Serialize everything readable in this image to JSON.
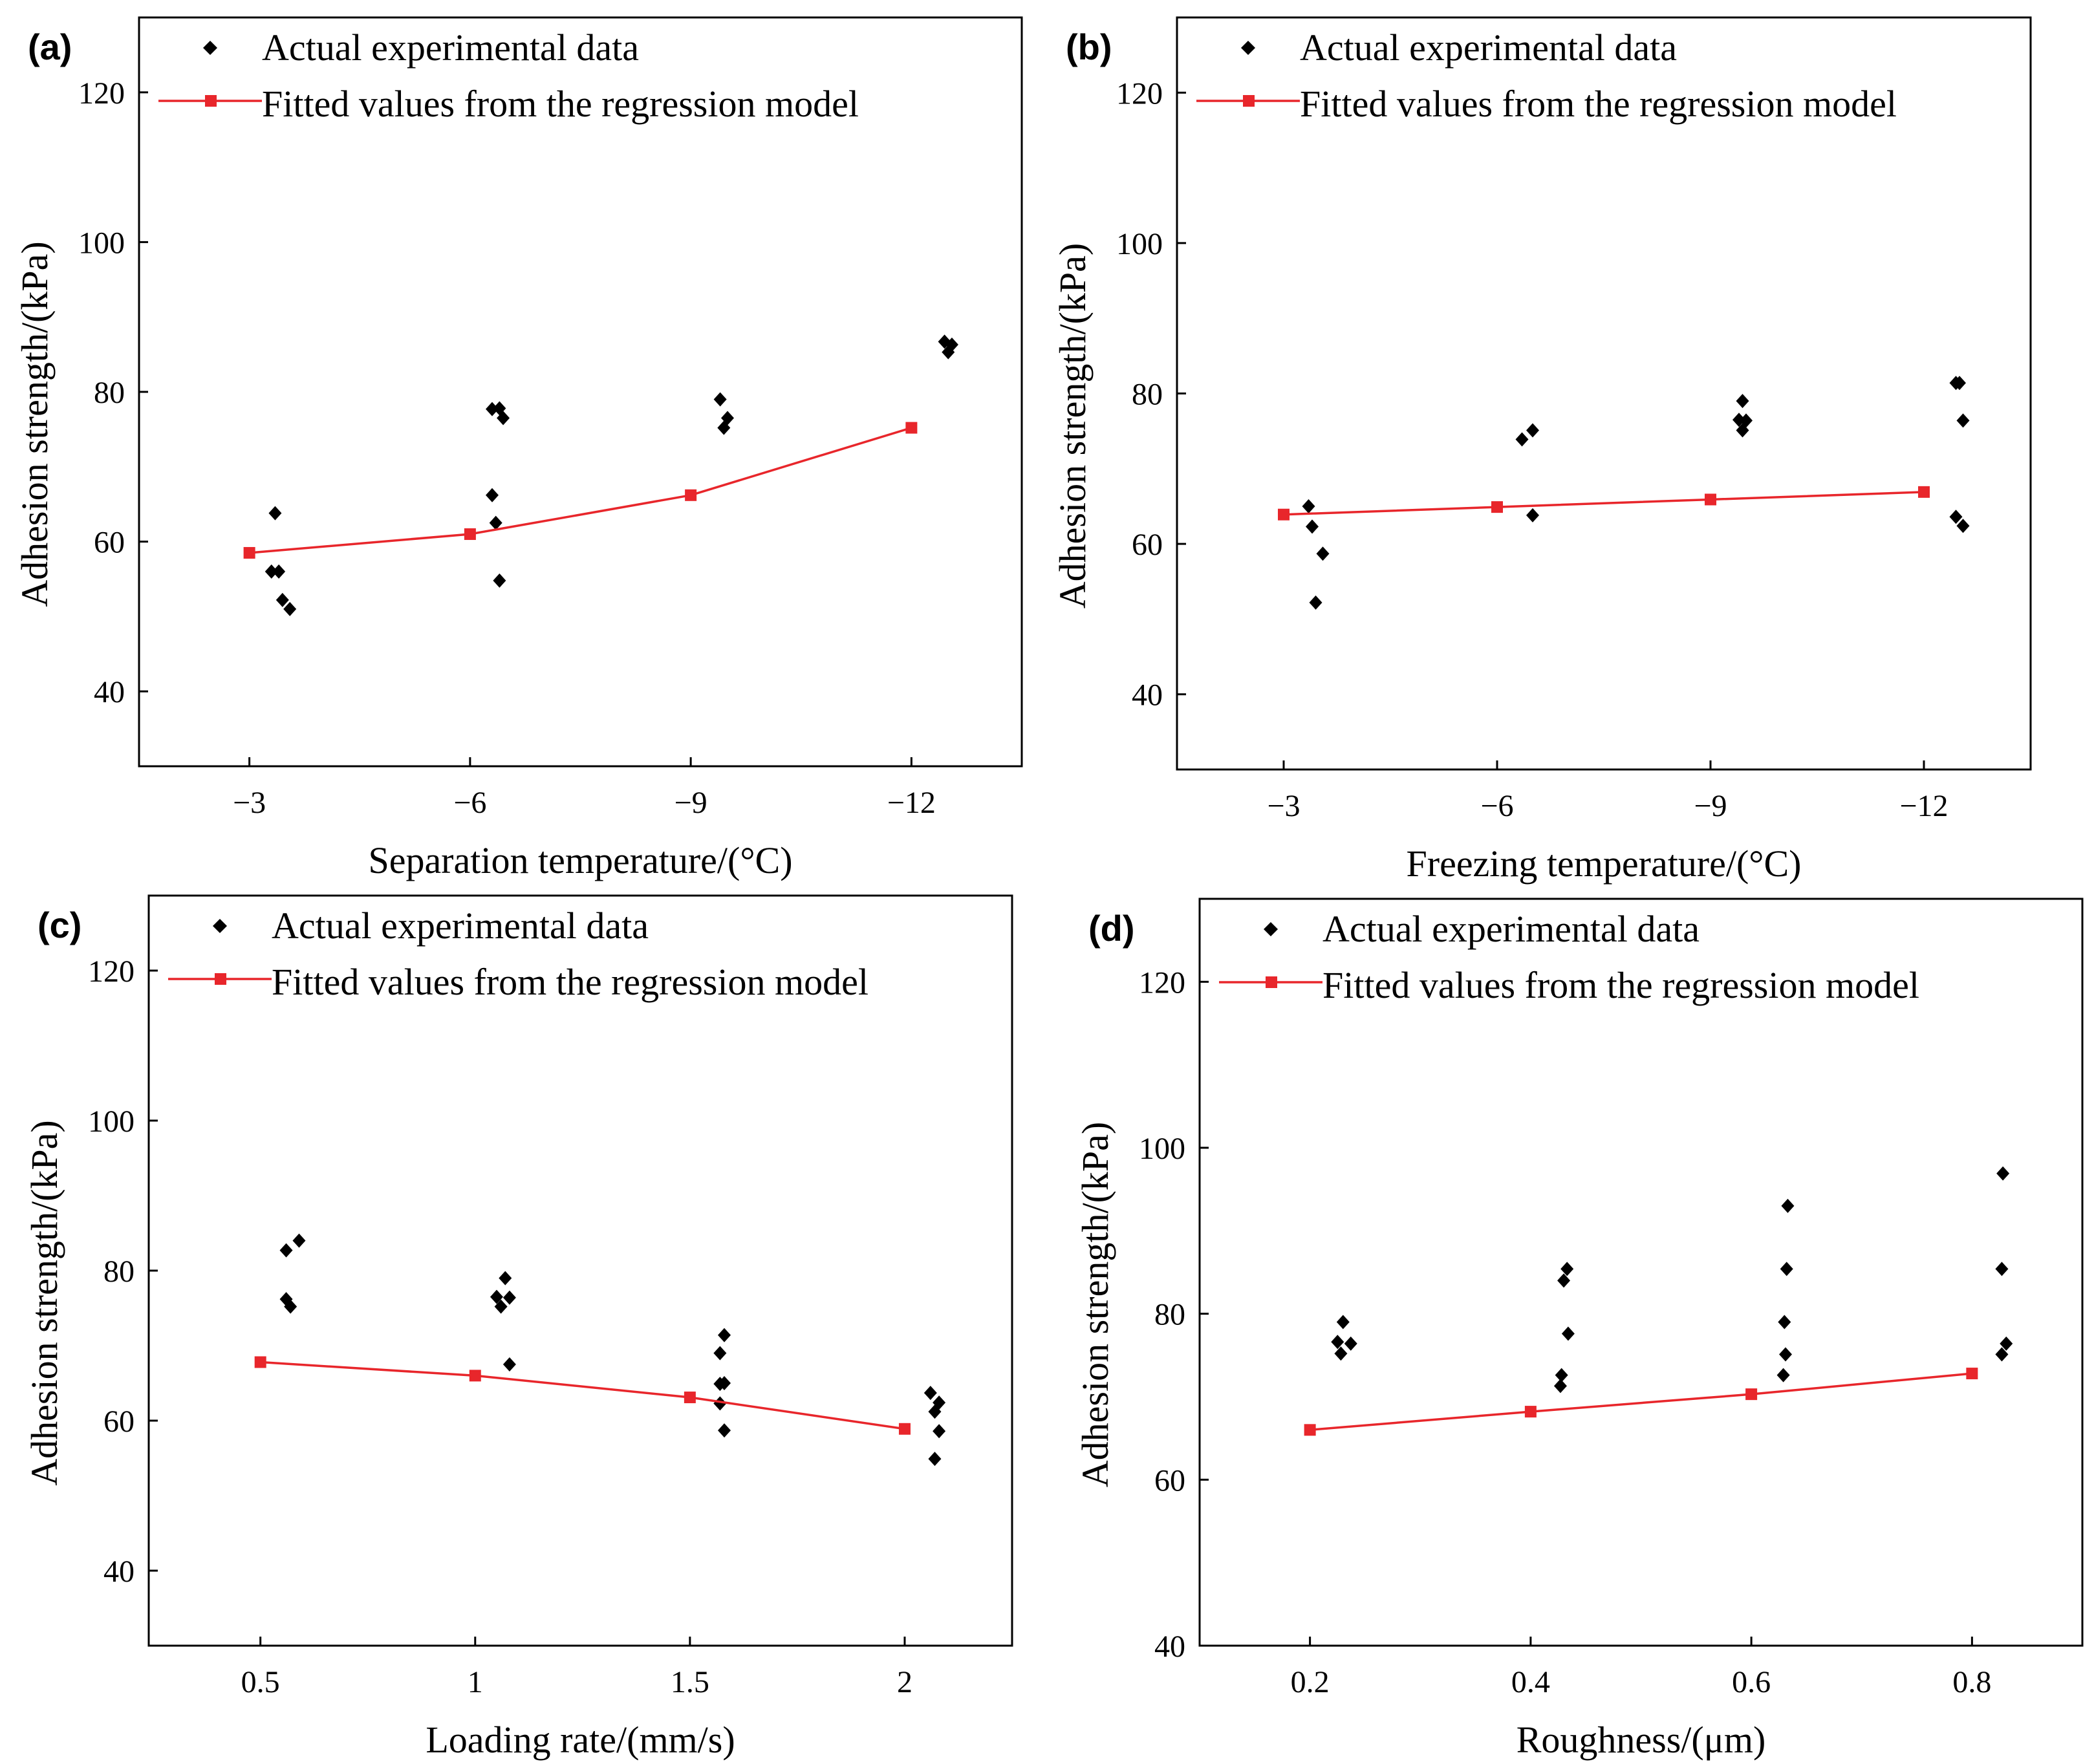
{
  "colors": {
    "points": "#000000",
    "fit": "#e8262b",
    "axes": "#000000",
    "background": "#ffffff"
  },
  "chart_data": [
    {
      "type": "scatter",
      "panel_label": "(a)",
      "xlabel": "Separation temperature/(°C)",
      "ylabel": "Adhesion strength/(kPa)",
      "x_ticks": [
        -3,
        -6,
        -9,
        -12
      ],
      "x_tick_labels": [
        "−3",
        "−6",
        "−9",
        "−12"
      ],
      "xlim": [
        -1.5,
        -13.5
      ],
      "x_reversed": true,
      "y_ticks": [
        40,
        60,
        80,
        100,
        120
      ],
      "y_tick_labels": [
        "40",
        "60",
        "80",
        "100",
        "120"
      ],
      "ylim": [
        30,
        130
      ],
      "legend": [
        "Actual experimental data",
        "Fitted values from the regression model"
      ],
      "legend_position": "top-left",
      "series": [
        {
          "name": "Actual experimental data",
          "kind": "scatter",
          "points": [
            [
              -3.35,
              63.8
            ],
            [
              -3.3,
              56.0
            ],
            [
              -3.4,
              56.0
            ],
            [
              -3.45,
              52.2
            ],
            [
              -3.55,
              51.0
            ],
            [
              -6.3,
              77.7
            ],
            [
              -6.4,
              77.8
            ],
            [
              -6.45,
              76.5
            ],
            [
              -6.3,
              66.2
            ],
            [
              -6.35,
              62.5
            ],
            [
              -6.4,
              54.8
            ],
            [
              -9.4,
              79.0
            ],
            [
              -9.5,
              76.5
            ],
            [
              -9.45,
              75.2
            ],
            [
              -12.45,
              86.7
            ],
            [
              -12.55,
              86.3
            ],
            [
              -12.5,
              85.3
            ]
          ]
        },
        {
          "name": "Fitted values from the regression model",
          "kind": "line",
          "points": [
            [
              -3,
              58.5
            ],
            [
              -6,
              61.0
            ],
            [
              -9,
              66.2
            ],
            [
              -12,
              75.2
            ]
          ]
        }
      ]
    },
    {
      "type": "scatter",
      "panel_label": "(b)",
      "xlabel": "Freezing temperature/(°C)",
      "ylabel": "Adhesion strength/(kPa)",
      "x_ticks": [
        -3,
        -6,
        -9,
        -12
      ],
      "x_tick_labels": [
        "−3",
        "−6",
        "−9",
        "−12"
      ],
      "xlim": [
        -1.5,
        -13.5
      ],
      "x_reversed": true,
      "y_ticks": [
        40,
        60,
        80,
        100,
        120
      ],
      "y_tick_labels": [
        "40",
        "60",
        "80",
        "100",
        "120"
      ],
      "ylim": [
        30,
        130
      ],
      "legend": [
        "Actual experimental data",
        "Fitted values from the regression model"
      ],
      "legend_position": "top-left",
      "series": [
        {
          "name": "Actual experimental data",
          "kind": "scatter",
          "points": [
            [
              -3.35,
              65.0
            ],
            [
              -3.4,
              62.3
            ],
            [
              -3.55,
              58.7
            ],
            [
              -3.45,
              52.2
            ],
            [
              -6.35,
              73.9
            ],
            [
              -6.5,
              75.1
            ],
            [
              -6.5,
              63.8
            ],
            [
              -9.45,
              79.0
            ],
            [
              -9.4,
              76.5
            ],
            [
              -9.5,
              76.4
            ],
            [
              -9.45,
              75.1
            ],
            [
              -12.45,
              81.4
            ],
            [
              -12.5,
              81.4
            ],
            [
              -12.55,
              76.4
            ],
            [
              -12.45,
              63.6
            ],
            [
              -12.55,
              62.4
            ]
          ]
        },
        {
          "name": "Fitted values from the regression model",
          "kind": "line",
          "points": [
            [
              -3,
              63.9
            ],
            [
              -6,
              64.9
            ],
            [
              -9,
              65.9
            ],
            [
              -12,
              66.9
            ]
          ]
        }
      ]
    },
    {
      "type": "scatter",
      "panel_label": "(c)",
      "xlabel": "Loading rate/(mm/s)",
      "ylabel": "Adhesion strength/(kPa)",
      "x_ticks": [
        0.5,
        1,
        1.5,
        2
      ],
      "x_tick_labels": [
        "0.5",
        "1",
        "1.5",
        "2"
      ],
      "xlim": [
        0.24,
        2.25
      ],
      "x_reversed": false,
      "y_ticks": [
        40,
        60,
        80,
        100,
        120
      ],
      "y_tick_labels": [
        "40",
        "60",
        "80",
        "100",
        "120"
      ],
      "ylim": [
        30,
        130
      ],
      "legend": [
        "Actual experimental data",
        "Fitted values from the regression model"
      ],
      "legend_position": "top-left",
      "series": [
        {
          "name": "Actual experimental data",
          "kind": "scatter",
          "points": [
            [
              0.59,
              84.0
            ],
            [
              0.56,
              82.7
            ],
            [
              0.56,
              76.2
            ],
            [
              0.57,
              75.2
            ],
            [
              1.07,
              79.0
            ],
            [
              1.05,
              76.5
            ],
            [
              1.08,
              76.4
            ],
            [
              1.06,
              75.2
            ],
            [
              1.08,
              67.5
            ],
            [
              1.58,
              71.4
            ],
            [
              1.57,
              69.0
            ],
            [
              1.58,
              65.0
            ],
            [
              1.57,
              64.9
            ],
            [
              1.57,
              62.3
            ],
            [
              1.58,
              58.7
            ],
            [
              2.06,
              63.7
            ],
            [
              2.08,
              62.4
            ],
            [
              2.07,
              61.2
            ],
            [
              2.08,
              58.6
            ],
            [
              2.07,
              54.9
            ]
          ]
        },
        {
          "name": "Fitted values from the regression model",
          "kind": "line",
          "points": [
            [
              0.5,
              67.8
            ],
            [
              1.0,
              66.0
            ],
            [
              1.5,
              63.1
            ],
            [
              2.0,
              58.9
            ]
          ]
        }
      ]
    },
    {
      "type": "scatter",
      "panel_label": "(d)",
      "xlabel": "Roughness/(μm)",
      "ylabel": "Adhesion strength/(kPa)",
      "x_ticks": [
        0.2,
        0.4,
        0.6,
        0.8
      ],
      "x_tick_labels": [
        "0.2",
        "0.4",
        "0.6",
        "0.8"
      ],
      "xlim": [
        0.1,
        0.9
      ],
      "x_reversed": false,
      "y_ticks": [
        40,
        60,
        80,
        100,
        120
      ],
      "y_tick_labels": [
        "40",
        "60",
        "80",
        "100",
        "120"
      ],
      "ylim": [
        40,
        130
      ],
      "legend": [
        "Actual experimental data",
        "Fitted values from the regression model"
      ],
      "legend_position": "top-left",
      "series": [
        {
          "name": "Actual experimental data",
          "kind": "scatter",
          "points": [
            [
              0.23,
              79.0
            ],
            [
              0.225,
              76.6
            ],
            [
              0.237,
              76.4
            ],
            [
              0.228,
              75.2
            ],
            [
              0.433,
              85.4
            ],
            [
              0.43,
              84.0
            ],
            [
              0.434,
              77.6
            ],
            [
              0.428,
              72.6
            ],
            [
              0.427,
              71.3
            ],
            [
              0.633,
              93.0
            ],
            [
              0.632,
              85.4
            ],
            [
              0.63,
              79.0
            ],
            [
              0.631,
              75.1
            ],
            [
              0.629,
              72.6
            ],
            [
              0.828,
              96.9
            ],
            [
              0.827,
              85.4
            ],
            [
              0.831,
              76.4
            ],
            [
              0.827,
              75.1
            ]
          ]
        },
        {
          "name": "Fitted values from the regression model",
          "kind": "line",
          "points": [
            [
              0.2,
              66.0
            ],
            [
              0.4,
              68.2
            ],
            [
              0.6,
              70.3
            ],
            [
              0.8,
              72.8
            ]
          ]
        }
      ]
    }
  ]
}
